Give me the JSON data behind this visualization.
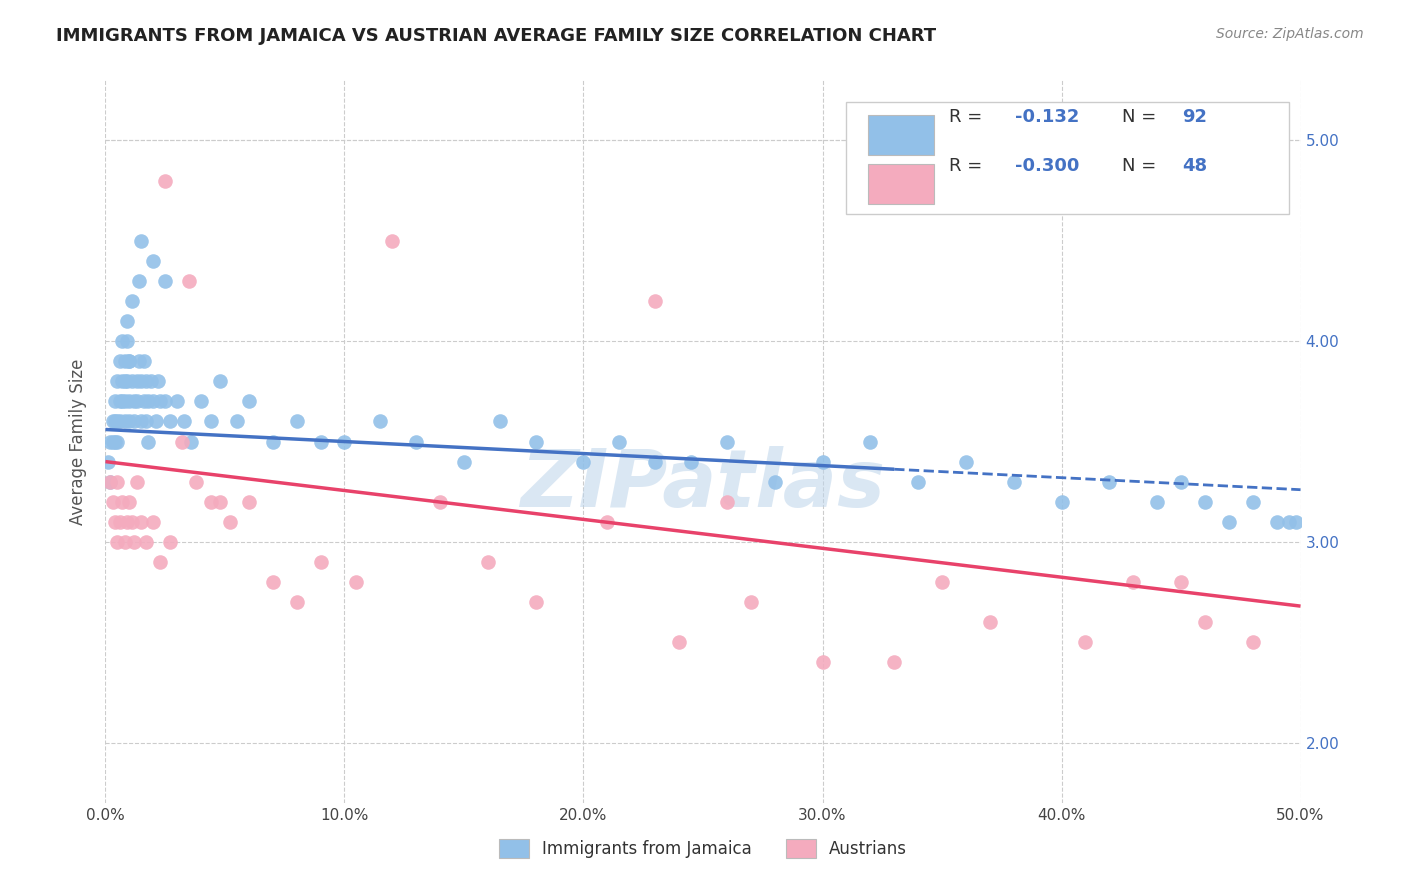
{
  "title": "IMMIGRANTS FROM JAMAICA VS AUSTRIAN AVERAGE FAMILY SIZE CORRELATION CHART",
  "source": "Source: ZipAtlas.com",
  "ylabel": "Average Family Size",
  "xlim": [
    0.0,
    0.5
  ],
  "ylim": [
    1.7,
    5.3
  ],
  "right_yticks": [
    2.0,
    3.0,
    4.0,
    5.0
  ],
  "xtick_labels": [
    "0.0%",
    "10.0%",
    "20.0%",
    "30.0%",
    "40.0%",
    "50.0%"
  ],
  "xtick_positions": [
    0.0,
    0.1,
    0.2,
    0.3,
    0.4,
    0.5
  ],
  "blue_color": "#92C0E8",
  "pink_color": "#F4ABBE",
  "blue_line_color": "#4472C4",
  "pink_line_color": "#E8426A",
  "watermark": "ZIPatlas",
  "legend_r_blue": "-0.132",
  "legend_n_blue": "92",
  "legend_r_pink": "-0.300",
  "legend_n_pink": "48",
  "blue_scatter_x": [
    0.001,
    0.002,
    0.002,
    0.003,
    0.003,
    0.004,
    0.004,
    0.004,
    0.005,
    0.005,
    0.005,
    0.006,
    0.006,
    0.006,
    0.007,
    0.007,
    0.007,
    0.008,
    0.008,
    0.008,
    0.008,
    0.009,
    0.009,
    0.009,
    0.01,
    0.01,
    0.01,
    0.011,
    0.011,
    0.012,
    0.012,
    0.013,
    0.013,
    0.014,
    0.014,
    0.015,
    0.015,
    0.016,
    0.016,
    0.017,
    0.017,
    0.018,
    0.018,
    0.019,
    0.02,
    0.021,
    0.022,
    0.023,
    0.025,
    0.027,
    0.03,
    0.033,
    0.036,
    0.04,
    0.044,
    0.048,
    0.055,
    0.06,
    0.07,
    0.08,
    0.09,
    0.1,
    0.115,
    0.13,
    0.15,
    0.165,
    0.18,
    0.2,
    0.215,
    0.23,
    0.245,
    0.26,
    0.28,
    0.3,
    0.32,
    0.34,
    0.36,
    0.38,
    0.4,
    0.42,
    0.44,
    0.45,
    0.46,
    0.47,
    0.48,
    0.49,
    0.495,
    0.498,
    0.01,
    0.015,
    0.02,
    0.025
  ],
  "blue_scatter_y": [
    3.4,
    3.5,
    3.3,
    3.6,
    3.5,
    3.7,
    3.6,
    3.5,
    3.8,
    3.6,
    3.5,
    3.9,
    3.7,
    3.6,
    4.0,
    3.8,
    3.7,
    3.9,
    3.8,
    3.7,
    3.6,
    4.1,
    4.0,
    3.8,
    3.9,
    3.7,
    3.6,
    4.2,
    3.8,
    3.7,
    3.6,
    3.8,
    3.7,
    4.3,
    3.9,
    3.6,
    3.8,
    3.7,
    3.9,
    3.8,
    3.6,
    3.7,
    3.5,
    3.8,
    3.7,
    3.6,
    3.8,
    3.7,
    3.7,
    3.6,
    3.7,
    3.6,
    3.5,
    3.7,
    3.6,
    3.8,
    3.6,
    3.7,
    3.5,
    3.6,
    3.5,
    3.5,
    3.6,
    3.5,
    3.4,
    3.6,
    3.5,
    3.4,
    3.5,
    3.4,
    3.4,
    3.5,
    3.3,
    3.4,
    3.5,
    3.3,
    3.4,
    3.3,
    3.2,
    3.3,
    3.2,
    3.3,
    3.2,
    3.1,
    3.2,
    3.1,
    3.1,
    3.1,
    3.9,
    4.5,
    4.4,
    4.3
  ],
  "pink_scatter_x": [
    0.002,
    0.003,
    0.004,
    0.005,
    0.005,
    0.006,
    0.007,
    0.008,
    0.009,
    0.01,
    0.011,
    0.012,
    0.013,
    0.015,
    0.017,
    0.02,
    0.023,
    0.027,
    0.032,
    0.038,
    0.044,
    0.052,
    0.06,
    0.07,
    0.08,
    0.09,
    0.105,
    0.12,
    0.14,
    0.16,
    0.18,
    0.21,
    0.24,
    0.27,
    0.3,
    0.33,
    0.37,
    0.41,
    0.45,
    0.48,
    0.025,
    0.035,
    0.048,
    0.23,
    0.26,
    0.35,
    0.43,
    0.46
  ],
  "pink_scatter_y": [
    3.3,
    3.2,
    3.1,
    3.3,
    3.0,
    3.1,
    3.2,
    3.0,
    3.1,
    3.2,
    3.1,
    3.0,
    3.3,
    3.1,
    3.0,
    3.1,
    2.9,
    3.0,
    3.5,
    3.3,
    3.2,
    3.1,
    3.2,
    2.8,
    2.7,
    2.9,
    2.8,
    4.5,
    3.2,
    2.9,
    2.7,
    3.1,
    2.5,
    2.7,
    2.4,
    2.4,
    2.6,
    2.5,
    2.8,
    2.5,
    4.8,
    4.3,
    3.2,
    4.2,
    3.2,
    2.8,
    2.8,
    2.6
  ],
  "blue_trend_x0": 0.0,
  "blue_trend_x_solid_end": 0.33,
  "blue_trend_x1": 0.5,
  "blue_trend_y0": 3.56,
  "blue_trend_y1": 3.26,
  "pink_trend_x0": 0.0,
  "pink_trend_x1": 0.5,
  "pink_trend_y0": 3.4,
  "pink_trend_y1": 2.68,
  "grid_color": "#CCCCCC",
  "background_color": "#FFFFFF"
}
